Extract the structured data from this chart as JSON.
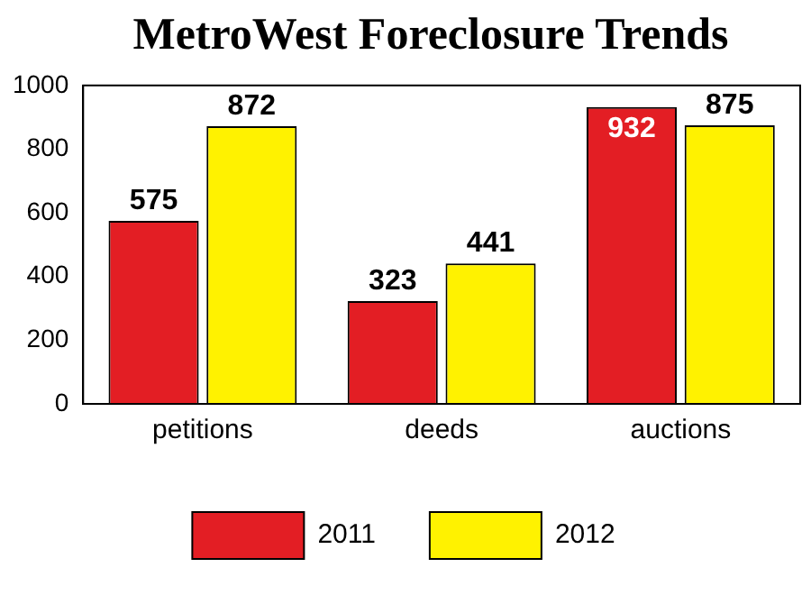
{
  "chart_data": {
    "type": "bar",
    "title": "MetroWest Foreclosure Trends",
    "categories": [
      "petitions",
      "deeds",
      "auctions"
    ],
    "series": [
      {
        "name": "2011",
        "color": "#e31e24",
        "values": [
          575,
          323,
          932
        ]
      },
      {
        "name": "2012",
        "color": "#fff200",
        "values": [
          872,
          441,
          875
        ]
      }
    ],
    "ylim": [
      0,
      1000
    ],
    "yticks": [
      0,
      200,
      400,
      600,
      800,
      1000
    ],
    "grid": false,
    "legend": "bottom",
    "data_labels": true
  }
}
